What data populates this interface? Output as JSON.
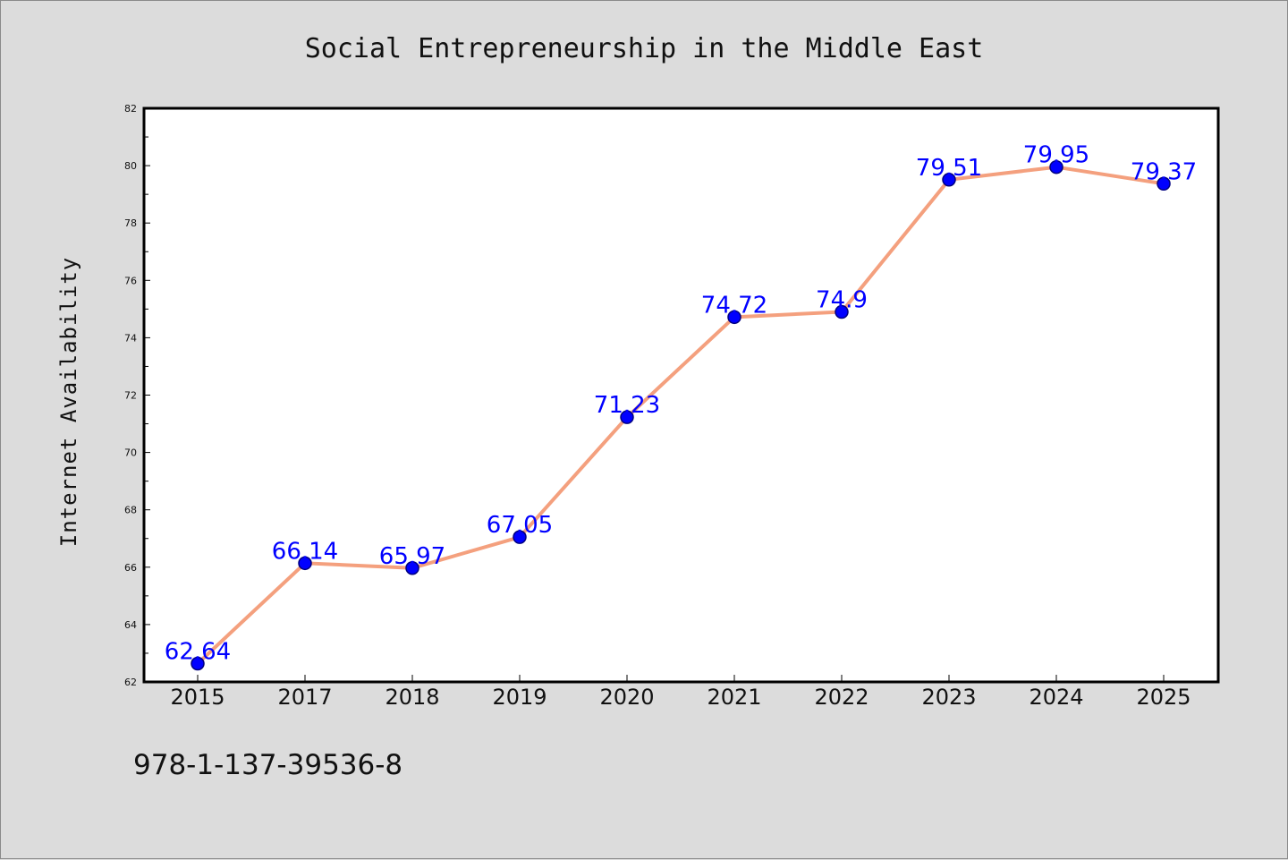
{
  "chart_data": {
    "type": "line",
    "title": "Social Entrepreneurship in the Middle East",
    "xlabel": "",
    "ylabel": "Internet Availability",
    "categories": [
      "2015",
      "2017",
      "2018",
      "2019",
      "2020",
      "2021",
      "2022",
      "2023",
      "2024",
      "2025"
    ],
    "series": [
      {
        "values": [
          62.64,
          66.14,
          65.97,
          67.05,
          71.23,
          74.72,
          74.9,
          79.51,
          79.95,
          79.37
        ],
        "data_labels": [
          "62.64",
          "66.14",
          "65.97",
          "67.05",
          "71.23",
          "74.72",
          "74.9",
          "79.51",
          "79.95",
          "79.37"
        ]
      }
    ],
    "ylim": [
      62,
      82
    ],
    "yticks": [
      62,
      64,
      66,
      68,
      70,
      72,
      74,
      76,
      78,
      80,
      82
    ],
    "grid": false,
    "legend": "none",
    "colors": {
      "line": "#f4a07e",
      "marker_fill": "#0000ff",
      "marker_edge": "#000080",
      "label": "#0000ff",
      "plot_background": "#ffffff",
      "figure_background": "#dcdcdc"
    }
  },
  "footer": {
    "isbn": "978-1-137-39536-8"
  }
}
